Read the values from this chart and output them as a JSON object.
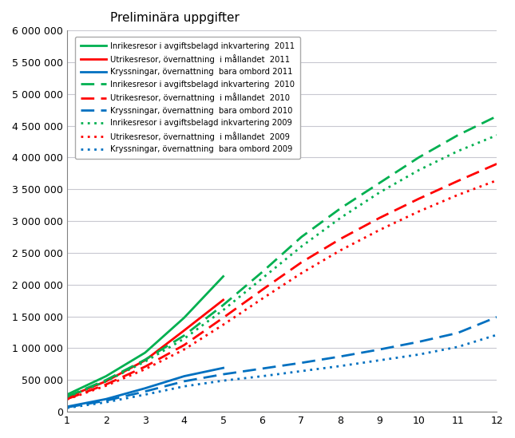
{
  "title": "Preliminära uppgifter",
  "xlim": [
    1,
    12
  ],
  "ylim": [
    0,
    6000000
  ],
  "yticks": [
    0,
    500000,
    1000000,
    1500000,
    2000000,
    2500000,
    3000000,
    3500000,
    4000000,
    4500000,
    5000000,
    5500000,
    6000000
  ],
  "ytick_labels": [
    "0",
    "500 000",
    "1 000 000",
    "1 500 000",
    "2 000 000",
    "2 500 000",
    "3 000 000",
    "3 500 000",
    "4 000 000",
    "4 500 000",
    "5 000 000",
    "5 500 000",
    "6 000 000"
  ],
  "xticks": [
    1,
    2,
    3,
    4,
    5,
    6,
    7,
    8,
    9,
    10,
    11,
    12
  ],
  "inrikes_2011": [
    270000,
    560000,
    930000,
    1480000,
    2130000
  ],
  "inrikes_2010": [
    240000,
    500000,
    820000,
    1200000,
    1680000,
    2200000,
    2750000,
    3200000,
    3600000,
    4000000,
    4350000,
    4650000
  ],
  "inrikes_2009": [
    230000,
    480000,
    790000,
    1150000,
    1600000,
    2100000,
    2600000,
    3050000,
    3450000,
    3800000,
    4100000,
    4350000
  ],
  "utrikesresor_2011": [
    230000,
    480000,
    810000,
    1280000,
    1760000
  ],
  "utrikesresor_2010": [
    200000,
    430000,
    710000,
    1050000,
    1480000,
    1920000,
    2350000,
    2720000,
    3050000,
    3350000,
    3630000,
    3900000
  ],
  "utrikesresor_2009": [
    195000,
    410000,
    670000,
    980000,
    1370000,
    1780000,
    2180000,
    2540000,
    2860000,
    3150000,
    3410000,
    3640000
  ],
  "kryssningar_2011": [
    80000,
    200000,
    370000,
    560000,
    690000
  ],
  "kryssningar_2010": [
    70000,
    175000,
    320000,
    480000,
    590000,
    680000,
    770000,
    870000,
    980000,
    1100000,
    1240000,
    1490000
  ],
  "kryssningar_2009": [
    60000,
    150000,
    270000,
    400000,
    490000,
    560000,
    640000,
    720000,
    810000,
    900000,
    1020000,
    1210000
  ],
  "months_2011": [
    1,
    2,
    3,
    4,
    5
  ],
  "months_full": [
    1,
    2,
    3,
    4,
    5,
    6,
    7,
    8,
    9,
    10,
    11,
    12
  ],
  "color_green": "#00b050",
  "color_red": "#ff0000",
  "color_blue": "#0070c0",
  "legend_entries": [
    "Inrikesresor i avgiftsbelagd inkvartering  2011",
    "Utrikesresor, övernattning  i mållandet  2011",
    "Kryssningar, övernattning  bara ombord 2011",
    "Inrikesresor i avgiftsbelagd inkvartering  2010",
    "Utrikesresor, övernattning  i mållandet  2010",
    "Kryssningar, övernattning  bara ombord 2010",
    "Inrikesresor i avgiftsbelagd inkvartering 2009",
    "Utrikesresor, övernattning  i mållandet  2009",
    "Kryssningar, övernattning  bara ombord 2009"
  ]
}
